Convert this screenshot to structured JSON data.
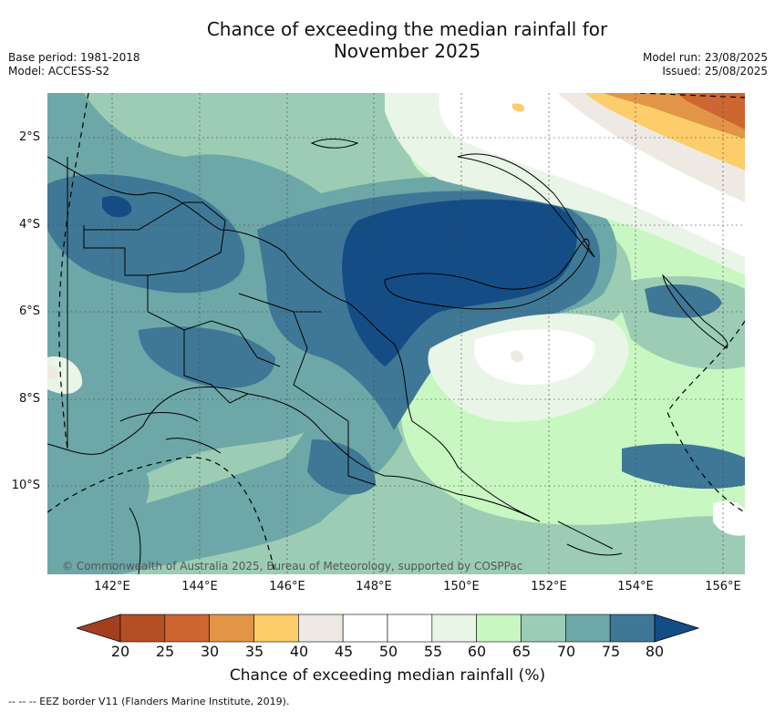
{
  "title_line1": "Chance of exceeding the median rainfall for",
  "title_line2": "November 2025",
  "base_period": "Base period: 1981-2018",
  "model": "Model: ACCESS-S2",
  "model_run": "Model run: 23/08/2025",
  "issued": "Issued: 25/08/2025",
  "lat_labels": [
    "2°S",
    "4°S",
    "6°S",
    "8°S",
    "10°S"
  ],
  "lon_labels": [
    "142°E",
    "144°E",
    "146°E",
    "148°E",
    "150°E",
    "152°E",
    "154°E",
    "156°E"
  ],
  "credit": "© Commonwealth of Australia 2025, Bureau of Meteorology, supported by COSPPac",
  "colorbar": {
    "ticks": [
      "20",
      "25",
      "30",
      "35",
      "40",
      "45",
      "50",
      "55",
      "60",
      "65",
      "70",
      "75",
      "80"
    ],
    "colors": [
      "#a23f20",
      "#b54e25",
      "#cd6630",
      "#e29447",
      "#fccd6a",
      "#eeeae3",
      "#ffffff",
      "#ffffff",
      "#e9f5e6",
      "#c8f7c2",
      "#9ccdb4",
      "#6ea7a8",
      "#3f7896",
      "#144d86"
    ],
    "label": "Chance of exceeding median rainfall (%)"
  },
  "footnote": "-- -- -- EEZ border V11 (Flanders Marine Institute, 2019)."
}
